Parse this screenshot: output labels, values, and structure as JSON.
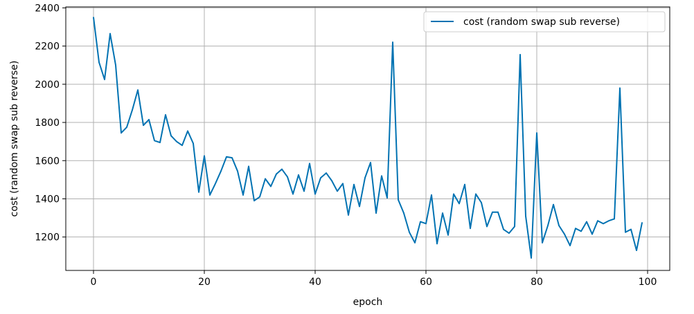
{
  "chart_data": {
    "type": "line",
    "xlabel": "epoch",
    "ylabel": "cost (random swap sub reverse)",
    "xlim": [
      -5,
      104
    ],
    "ylim": [
      1025,
      2405
    ],
    "xticks": [
      0,
      20,
      40,
      60,
      80,
      100
    ],
    "yticks": [
      1200,
      1400,
      1600,
      1800,
      2000,
      2200,
      2400
    ],
    "grid": true,
    "legend_position": "top-right",
    "series": [
      {
        "name": "cost (random swap sub reverse)",
        "color": "#0072b2",
        "x": [
          0,
          1,
          2,
          3,
          4,
          5,
          6,
          7,
          8,
          9,
          10,
          11,
          12,
          13,
          14,
          15,
          16,
          17,
          18,
          19,
          20,
          21,
          22,
          23,
          24,
          25,
          26,
          27,
          28,
          29,
          30,
          31,
          32,
          33,
          34,
          35,
          36,
          37,
          38,
          39,
          40,
          41,
          42,
          43,
          44,
          45,
          46,
          47,
          48,
          49,
          50,
          51,
          52,
          53,
          54,
          55,
          56,
          57,
          58,
          59,
          60,
          61,
          62,
          63,
          64,
          65,
          66,
          67,
          68,
          69,
          70,
          71,
          72,
          73,
          74,
          75,
          76,
          77,
          78,
          79,
          80,
          81,
          82,
          83,
          84,
          85,
          86,
          87,
          88,
          89,
          90,
          91,
          92,
          93,
          94,
          95,
          96,
          97,
          98,
          99
        ],
        "values": [
          2350,
          2115,
          2025,
          2265,
          2100,
          1745,
          1775,
          1865,
          1970,
          1785,
          1815,
          1705,
          1695,
          1840,
          1730,
          1700,
          1680,
          1755,
          1690,
          1435,
          1625,
          1420,
          1480,
          1545,
          1620,
          1615,
          1545,
          1420,
          1570,
          1390,
          1410,
          1505,
          1465,
          1530,
          1555,
          1515,
          1425,
          1525,
          1440,
          1585,
          1425,
          1510,
          1535,
          1495,
          1440,
          1480,
          1315,
          1475,
          1360,
          1510,
          1590,
          1325,
          1520,
          1405,
          2220,
          1395,
          1325,
          1225,
          1170,
          1280,
          1270,
          1420,
          1165,
          1325,
          1210,
          1425,
          1375,
          1475,
          1245,
          1425,
          1380,
          1255,
          1330,
          1330,
          1240,
          1220,
          1255,
          2155,
          1310,
          1090,
          1745,
          1170,
          1260,
          1370,
          1260,
          1215,
          1155,
          1245,
          1230,
          1280,
          1215,
          1285,
          1270,
          1285,
          1295,
          1980,
          1225,
          1240,
          1130,
          1275
        ]
      }
    ]
  }
}
